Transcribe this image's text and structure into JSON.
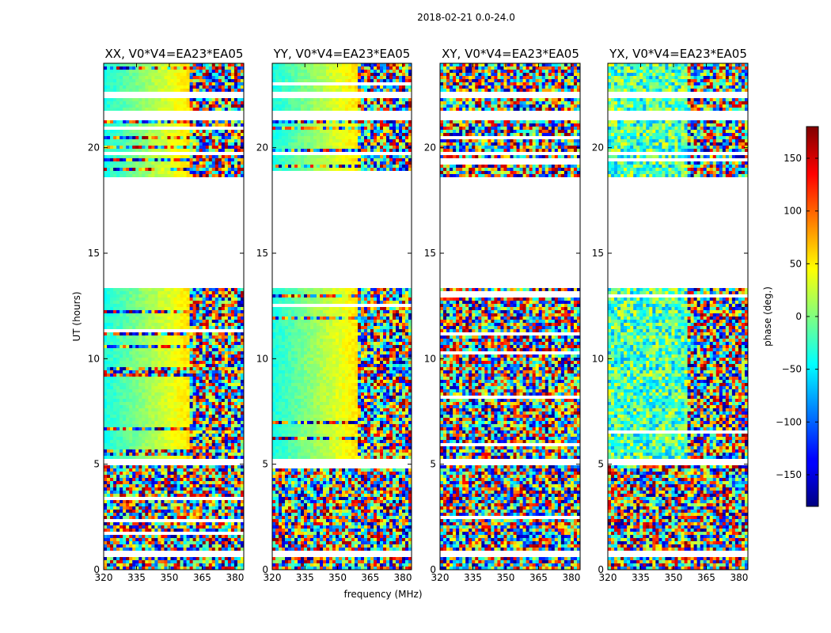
{
  "chart_data": {
    "type": "heatmap",
    "suptitle": "2018-02-21 0.0-24.0",
    "xlabel": "frequency (MHz)",
    "ylabel": "UT (hours)",
    "xlim": [
      320,
      384
    ],
    "ylim": [
      0,
      24
    ],
    "xticks": [
      "320",
      "335",
      "350",
      "365",
      "380"
    ],
    "yticks": [
      "0",
      "5",
      "10",
      "15",
      "20"
    ],
    "panels": [
      {
        "title": "XX, V0*V4=EA23*EA05",
        "polarization": "XX"
      },
      {
        "title": "YY, V0*V4=EA23*EA05",
        "polarization": "YY"
      },
      {
        "title": "XY, V0*V4=EA23*EA05",
        "polarization": "XY"
      },
      {
        "title": "YX, V0*V4=EA23*EA05",
        "polarization": "YX"
      }
    ],
    "colorbar": {
      "label": "phase (deg.)",
      "range": [
        -180,
        180
      ],
      "ticks": [
        "150",
        "100",
        "50",
        "0",
        "−50",
        "−100",
        "−150"
      ],
      "colormap": "jet"
    },
    "data_gaps_hours": [
      [
        0.6,
        0.85
      ],
      [
        5.0,
        5.3
      ],
      [
        13.35,
        18.65
      ],
      [
        19.6,
        19.75
      ],
      [
        21.3,
        21.7
      ],
      [
        22.3,
        22.6
      ],
      [
        22.9,
        23.0
      ],
      [
        23.2,
        23.3
      ]
    ]
  },
  "colors": {
    "axis": "#000000",
    "background": "#ffffff"
  }
}
